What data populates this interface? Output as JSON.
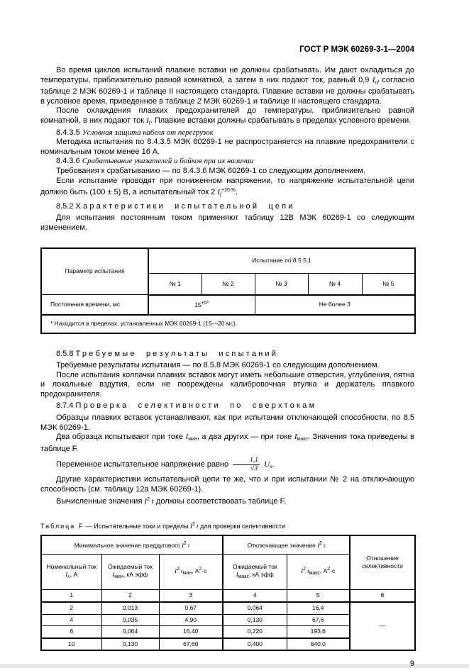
{
  "header": {
    "doc_number": "ГОСТ Р МЭК 60269-3-1—2004"
  },
  "footer": {
    "page_number": "9"
  },
  "paragraphs": {
    "p1": {
      "runs": [
        {
          "t": "Во время циклов испытаний плавкие вставки не должны срабатывать. Им дают охладиться до температуры, приблизительно равной комнатной, а затем в них подают ток, равный 0,9 "
        },
        {
          "t": "I",
          "s": "i"
        },
        {
          "t": "nf",
          "s": "subi"
        },
        {
          "t": " согласно таблице 2 МЭК 60269-1 и таблице II настоящего стандарта. Плавкие вставки не должны срабатывать в условное время, приведенное в таблице 2 МЭК 60269-1 и таблице II настоящего стандарта."
        }
      ]
    },
    "p2": {
      "runs": [
        {
          "t": "После охлаждения плавких предохранителей до температуры, приблизительно равной комнатной, в них подают ток "
        },
        {
          "t": "I",
          "s": "i"
        },
        {
          "t": "f",
          "s": "subi"
        },
        {
          "t": ". Плавкие вставки должны срабатывать в пределах условного времени."
        }
      ]
    },
    "h8435": {
      "runs": [
        {
          "t": "8.4.3.5 "
        },
        {
          "t": "Условная защита кабеля от перегрузок",
          "s": "i"
        }
      ]
    },
    "p3": {
      "runs": [
        {
          "t": "Методика испытания по 8.4.3.5 МЭК 60269-1 не распространяется на плавкие предохранители с номинальным током менее 16 А."
        }
      ]
    },
    "h8436": {
      "runs": [
        {
          "t": "8.4.3.6 "
        },
        {
          "t": "Срабатывание указателей и бойков при их наличии",
          "s": "i"
        }
      ]
    },
    "p4": {
      "runs": [
        {
          "t": "Требования к срабатыванию — по 8.4.3.6 МЭК 60269-1 со следующим дополнением."
        }
      ]
    },
    "p5": {
      "runs": [
        {
          "t": "Если испытание проводят при пониженном напряжении, то напряжение испытательной цепи должно быть (100 ± 5) В, а испытательный ток 2 "
        },
        {
          "t": "I",
          "s": "i"
        },
        {
          "t": "f",
          "s": "subi"
        },
        {
          "t": "+20 %",
          "s": "sup"
        },
        {
          "t": "."
        }
      ]
    },
    "h852": {
      "runs": [
        {
          "t": "8.5.2 "
        },
        {
          "t": "Характеристики испытательной цепи",
          "s": "sp"
        }
      ]
    },
    "p6": {
      "runs": [
        {
          "t": "Для испытания постоянным током применяют таблицу 12В МЭК 60269-1 со следующим изменением."
        }
      ]
    },
    "h858": {
      "runs": [
        {
          "t": "8.5.8 "
        },
        {
          "t": "Требуемые результаты испытаний",
          "s": "sp"
        }
      ]
    },
    "p7": {
      "runs": [
        {
          "t": "Требуемые результаты испытания — по 8.5.8 МЭК 60269-1 со следующим дополнением."
        }
      ]
    },
    "p8": {
      "runs": [
        {
          "t": "После испытания колпачки плавких вставок могут иметь небольшие отверстия, углубления, пятна и локальные вздутия, если не повреждены калибровочная втулка и держатель плавкого предохранителя."
        }
      ]
    },
    "h874": {
      "runs": [
        {
          "t": "8.7.4 "
        },
        {
          "t": "Проверка селективности по сверхтокам",
          "s": "sp"
        }
      ]
    },
    "p9": {
      "runs": [
        {
          "t": "Образцы плавких вставок устанавливают, как при испытании отключающей способности, по 8.5 МЭК 60269-1."
        }
      ]
    },
    "p10": {
      "runs": [
        {
          "t": "Два образца испытывают при токе "
        },
        {
          "t": "I",
          "s": "i"
        },
        {
          "t": "мин",
          "s": "sub"
        },
        {
          "t": ", а два других — при токе "
        },
        {
          "t": "I",
          "s": "i"
        },
        {
          "t": "макс",
          "s": "sub"
        },
        {
          "t": ". Значения тока приведены в таблице F."
        }
      ]
    },
    "p11": {
      "runs": [
        {
          "t": "Переменное испытательное напряжение равно "
        },
        {
          "t": "1,1|√3",
          "s": "frac"
        },
        {
          "t": " "
        },
        {
          "t": "U",
          "s": "i"
        },
        {
          "t": "n",
          "s": "subi"
        },
        {
          "t": "."
        }
      ]
    },
    "p12": {
      "runs": [
        {
          "t": "Другие характеристики испытательной цепи те же, что и при испытании № 2 на отключающую способность (см. таблицу 12а МЭК 60269-1)."
        }
      ]
    },
    "p13": {
      "runs": [
        {
          "t": "Вычисленные значения "
        },
        {
          "t": "I",
          "s": "i"
        },
        {
          "t": "2",
          "s": "sup"
        },
        {
          "t": " t",
          "s": "i"
        },
        {
          "t": " должны соответствовать таблице F."
        }
      ]
    }
  },
  "table1": {
    "corner": "Параметр испытания",
    "group": "Испытание по 8.5.5.1",
    "cols": [
      "№ 1",
      "№ 2",
      "№ 3",
      "№ 4",
      "№ 5"
    ],
    "row_label": "Постоянная времени, мс",
    "value_12_runs": [
      {
        "t": "15"
      },
      {
        "t": "+5*",
        "s": "sup"
      }
    ],
    "value_345": "Не более 3",
    "footnote": "*  Находится в пределах, установленных МЭК 60269-1 (15—20 мс)."
  },
  "tableF": {
    "caption_runs": [
      {
        "t": "Таблица F",
        "s": "sp2"
      },
      {
        "t": " — Испытательные токи и пределы "
      },
      {
        "t": "I",
        "s": "i"
      },
      {
        "t": "2",
        "s": "sup"
      },
      {
        "t": " t",
        "s": "i"
      },
      {
        "t": " для проверки селективности"
      }
    ],
    "group_min_runs": [
      {
        "t": "Минимальное значение преддугового "
      },
      {
        "t": "I",
        "s": "i"
      },
      {
        "t": "2",
        "s": "sup"
      },
      {
        "t": " t",
        "s": "i"
      }
    ],
    "group_break_runs": [
      {
        "t": "Отключающее значение "
      },
      {
        "t": "I",
        "s": "i"
      },
      {
        "t": "2",
        "s": "sup"
      },
      {
        "t": " t",
        "s": "i"
      }
    ],
    "ratio_header": "Отношение селективности",
    "h1_runs": [
      {
        "t": "Номинальный ток "
      },
      {
        "t": "I",
        "s": "i"
      },
      {
        "t": "n",
        "s": "subi"
      },
      {
        "t": ", А"
      }
    ],
    "h2_runs": [
      {
        "t": "Ожидаемый ток "
      },
      {
        "t": "I",
        "s": "i"
      },
      {
        "t": "мин",
        "s": "sub"
      },
      {
        "t": ", кА эфф"
      }
    ],
    "h3_runs": [
      {
        "t": "I",
        "s": "i"
      },
      {
        "t": "2",
        "s": "sup"
      },
      {
        "t": " t",
        "s": "i"
      },
      {
        "t": "мин",
        "s": "sub"
      },
      {
        "t": ", А"
      },
      {
        "t": "2",
        "s": "sup"
      },
      {
        "t": "·с"
      }
    ],
    "h4_runs": [
      {
        "t": "Ожидаемый ток "
      },
      {
        "t": "I",
        "s": "i"
      },
      {
        "t": "макс",
        "s": "sub"
      },
      {
        "t": ", кА эфф"
      }
    ],
    "h5_runs": [
      {
        "t": "I",
        "s": "i"
      },
      {
        "t": "2",
        "s": "sup"
      },
      {
        "t": " t",
        "s": "i"
      },
      {
        "t": "макс",
        "s": "sub"
      },
      {
        "t": ", А"
      },
      {
        "t": "2",
        "s": "sup"
      },
      {
        "t": "·с"
      }
    ],
    "nums": [
      "1",
      "2",
      "3",
      "4",
      "5",
      "6"
    ],
    "rows": [
      [
        "2",
        "0,013",
        "0,67",
        "0,064",
        "16,4"
      ],
      [
        "4",
        "0,035",
        "4,90",
        "0,130",
        "67,6"
      ],
      [
        "6",
        "0,064",
        "16,40",
        "0,220",
        "193,6"
      ],
      [
        "10",
        "0,130",
        "67,60",
        "0,400",
        "640,0"
      ]
    ],
    "ratio_value": "—"
  }
}
